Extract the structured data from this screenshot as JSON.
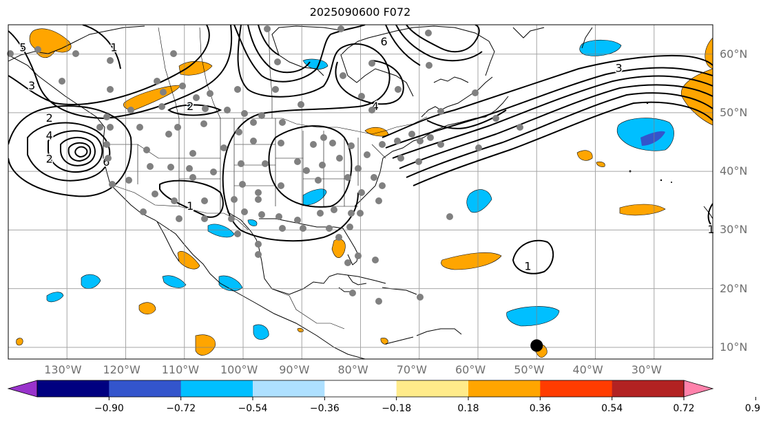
{
  "title": "2025090600 F072",
  "map": {
    "projection": "PlateCarree",
    "lon_range": [
      -140,
      -20
    ],
    "lat_range": [
      8,
      65
    ],
    "grid_lon": [
      -130,
      -120,
      -110,
      -100,
      -90,
      -80,
      -70,
      -60,
      -50,
      -40,
      -30
    ],
    "grid_lat": [
      10,
      20,
      30,
      40,
      50,
      60
    ],
    "lon_labels": [
      "130°W",
      "120°W",
      "110°W",
      "100°W",
      "90°W",
      "80°W",
      "70°W",
      "60°W",
      "50°W",
      "40°W",
      "30°W"
    ],
    "lat_labels": [
      "10°N",
      "20°N",
      "30°N",
      "40°N",
      "50°N",
      "60°N"
    ],
    "storm_marker": {
      "lon": -50,
      "lat": 10.3
    },
    "contour_labels": [
      {
        "text": "5",
        "lon": -137.5,
        "lat": 61
      },
      {
        "text": "3",
        "lon": -136,
        "lat": 54.5
      },
      {
        "text": "2",
        "lon": -133,
        "lat": 49
      },
      {
        "text": "1",
        "lon": -122,
        "lat": 61
      },
      {
        "text": "4",
        "lon": -133,
        "lat": 46
      },
      {
        "text": "6",
        "lon": -123.3,
        "lat": 41.5
      },
      {
        "text": "2",
        "lon": -133,
        "lat": 42
      },
      {
        "text": "2",
        "lon": -109,
        "lat": 51
      },
      {
        "text": "1",
        "lon": -109,
        "lat": 34
      },
      {
        "text": "6",
        "lon": -76,
        "lat": 62
      },
      {
        "text": "4",
        "lon": -77.5,
        "lat": 51
      },
      {
        "text": "3",
        "lon": -36,
        "lat": 57.5
      },
      {
        "text": "1",
        "lon": -51.5,
        "lat": 23.7
      },
      {
        "text": "1",
        "lon": -20.3,
        "lat": 30
      }
    ]
  },
  "colorbar": {
    "ticks": [
      "−0.90",
      "−0.72",
      "−0.54",
      "−0.36",
      "−0.18",
      "0.18",
      "0.36",
      "0.54",
      "0.72",
      "0.90"
    ],
    "colors": [
      "#9933cc",
      "#000080",
      "#3355cc",
      "#00bfff",
      "#aee0ff",
      "#ffffff",
      "#ffeb8a",
      "#ffa500",
      "#ff3c00",
      "#b22222",
      "#ff82ab"
    ],
    "units": ""
  }
}
